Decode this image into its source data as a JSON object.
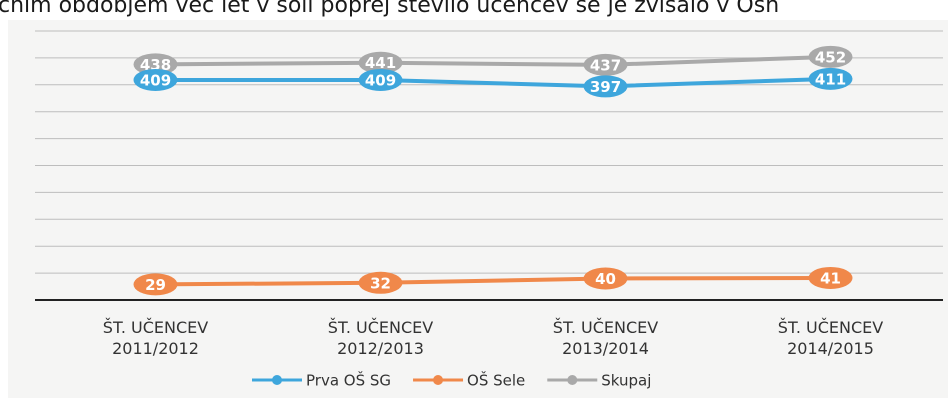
{
  "chart_data": {
    "type": "line",
    "title": "čnim obdobjem več let v šoli poprej število učencev se je zvišalo v Osn",
    "categories": [
      "ŠT. UČENCEV 2011/2012",
      "ŠT. UČENCEV 2012/2013",
      "ŠT. UČENCEV 2013/2014",
      "ŠT. UČENCEV 2014/2015"
    ],
    "series": [
      {
        "name": "Prva OŠ SG",
        "color": "#3ea6dc",
        "values": [
          409,
          409,
          397,
          411
        ]
      },
      {
        "name": "OŠ Sele",
        "color": "#f0884a",
        "values": [
          29,
          32,
          40,
          41
        ]
      },
      {
        "name": "Skupaj",
        "color": "#a9a9a9",
        "values": [
          438,
          441,
          437,
          452
        ]
      }
    ],
    "ylim": [
      0,
      500
    ],
    "yticks": [
      0,
      50,
      100,
      150,
      200,
      250,
      300,
      350,
      400,
      450,
      500
    ],
    "grid": true,
    "legend": "bottom"
  }
}
